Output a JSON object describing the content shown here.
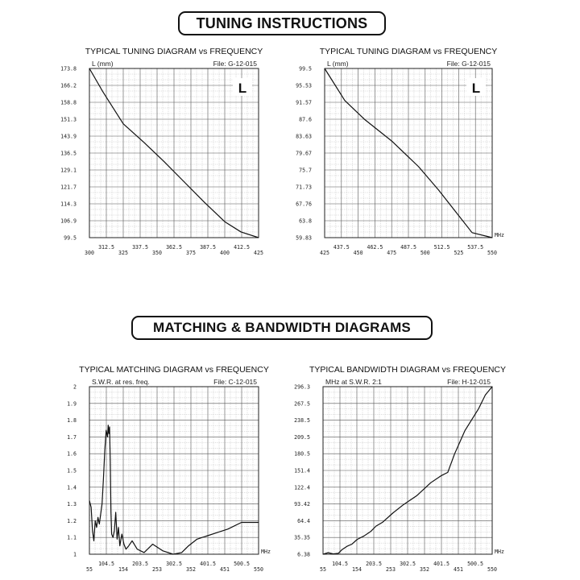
{
  "banners": {
    "tuning": "TUNING INSTRUCTIONS",
    "matching": "MATCHING & BANDWIDTH DIAGRAMS"
  },
  "chart_data": [
    {
      "id": "tuning-low",
      "type": "line",
      "title": "TYPICAL TUNING DIAGRAM vs FREQUENCY",
      "ylabel": "L (mm)",
      "file": "File: G-12-015",
      "letter": "L",
      "xunit": "",
      "xlim": [
        300,
        425
      ],
      "ylim": [
        99.5,
        173.8
      ],
      "xticks_low": [
        "300",
        "325",
        "350",
        "375",
        "400",
        "425"
      ],
      "xticks_high": [
        "312.5",
        "337.5",
        "362.5",
        "387.5",
        "412.5"
      ],
      "yticks": [
        "173.8",
        "166.2",
        "158.8",
        "151.3",
        "143.9",
        "136.5",
        "129.1",
        "121.7",
        "114.3",
        "106.9",
        "99.5"
      ],
      "x": [
        300,
        310,
        325,
        340,
        355,
        370,
        385,
        400,
        412,
        425
      ],
      "y": [
        173.8,
        163.5,
        149.5,
        141.5,
        133,
        124,
        115,
        106.5,
        102,
        99.5
      ]
    },
    {
      "id": "tuning-high",
      "type": "line",
      "title": "TYPICAL TUNING DIAGRAM vs FREQUENCY",
      "ylabel": "L (mm)",
      "file": "File: G-12-015",
      "letter": "L",
      "xunit": "MHz",
      "xlim": [
        425,
        550
      ],
      "ylim": [
        59.83,
        99.5
      ],
      "xticks_low": [
        "425",
        "450",
        "475",
        "500",
        "525",
        "550"
      ],
      "xticks_high": [
        "437.5",
        "462.5",
        "487.5",
        "512.5",
        "537.5"
      ],
      "yticks": [
        "99.5",
        "95.53",
        "91.57",
        "87.6",
        "83.63",
        "79.67",
        "75.7",
        "71.73",
        "67.76",
        "63.8",
        "59.83"
      ],
      "x": [
        425,
        440,
        455,
        475,
        495,
        510,
        525,
        535,
        550
      ],
      "y": [
        99.5,
        92,
        87.5,
        82.5,
        76.5,
        71,
        65,
        61,
        59.83
      ]
    },
    {
      "id": "matching",
      "type": "line",
      "title": "TYPICAL MATCHING DIAGRAM vs FREQUENCY",
      "ylabel": "S.W.R. at res. freq.",
      "file": "File: C-12-015",
      "letter": "",
      "xunit": "MHz",
      "xlim": [
        55,
        550
      ],
      "ylim": [
        1,
        2
      ],
      "xticks_low": [
        "55",
        "154",
        "253",
        "352",
        "451",
        "550"
      ],
      "xticks_high": [
        "104.5",
        "203.5",
        "302.5",
        "401.5",
        "500.5"
      ],
      "yticks": [
        "2",
        "1.9",
        "1.8",
        "1.7",
        "1.6",
        "1.5",
        "1.4",
        "1.3",
        "1.2",
        "1.1",
        "1"
      ],
      "x": [
        55,
        60,
        64,
        68,
        72,
        76,
        80,
        84,
        88,
        92,
        96,
        100,
        104,
        108,
        110,
        112,
        114,
        116,
        118,
        120,
        124,
        128,
        132,
        136,
        140,
        144,
        150,
        156,
        162,
        170,
        180,
        195,
        215,
        240,
        270,
        300,
        325,
        345,
        370,
        400,
        430,
        460,
        500,
        530,
        550
      ],
      "y": [
        1.32,
        1.28,
        1.14,
        1.08,
        1.2,
        1.16,
        1.22,
        1.18,
        1.24,
        1.3,
        1.45,
        1.62,
        1.74,
        1.7,
        1.77,
        1.72,
        1.76,
        1.55,
        1.25,
        1.12,
        1.1,
        1.14,
        1.25,
        1.09,
        1.16,
        1.05,
        1.12,
        1.06,
        1.03,
        1.05,
        1.08,
        1.03,
        1.01,
        1.06,
        1.02,
        1.0,
        1.01,
        1.05,
        1.09,
        1.11,
        1.13,
        1.15,
        1.19,
        1.19,
        1.19
      ]
    },
    {
      "id": "bandwidth",
      "type": "line",
      "title": "TYPICAL BANDWIDTH DIAGRAM vs FREQUENCY",
      "ylabel": "MHz at S.W.R. 2:1",
      "file": "File: H-12-015",
      "letter": "",
      "xunit": "MHz",
      "xlim": [
        55,
        550
      ],
      "ylim": [
        6.38,
        296.3
      ],
      "xticks_low": [
        "55",
        "154",
        "253",
        "352",
        "451",
        "550"
      ],
      "xticks_high": [
        "104.5",
        "203.5",
        "302.5",
        "401.5",
        "500.5"
      ],
      "yticks": [
        "296.3",
        "267.5",
        "238.5",
        "209.5",
        "180.5",
        "151.4",
        "122.4",
        "93.42",
        "64.4",
        "35.35",
        "6.38"
      ],
      "x": [
        55,
        70,
        85,
        100,
        110,
        125,
        140,
        155,
        175,
        195,
        210,
        230,
        260,
        290,
        330,
        370,
        400,
        420,
        440,
        470,
        510,
        530,
        550
      ],
      "y": [
        6.38,
        9,
        7,
        8,
        14,
        20,
        24,
        32,
        38,
        46,
        55,
        62,
        78,
        92,
        108,
        130,
        142,
        148,
        180,
        220,
        258,
        282,
        296.3
      ]
    }
  ]
}
